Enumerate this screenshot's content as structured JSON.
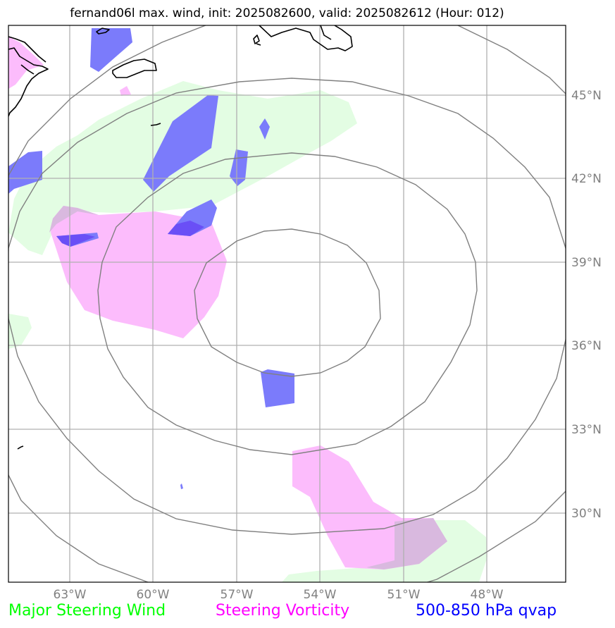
{
  "title": "fernand06l max. wind, init: 2025082600, valid: 2025082612 (Hour: 012)",
  "lon_ticks": [
    "63°W",
    "60°W",
    "57°W",
    "54°W",
    "51°W",
    "48°W"
  ],
  "lat_ticks": [
    "45°N",
    "42°N",
    "39°N",
    "36°N",
    "33°N",
    "30°N"
  ],
  "legend": {
    "wind": "Major Steering Wind",
    "vorticity": "Steering Vorticity",
    "qvap": "500-850 hPa qvap"
  },
  "colors": {
    "wind": "#00ff00",
    "vorticity": "#ff00ff",
    "qvap": "#0000ff",
    "wind_fill": "#e3fde3",
    "vorticity_fill": "#fcbcfc",
    "qvap_fill": "#7b7bfb",
    "grid": "#b0b0b0",
    "range_rings": "#808080",
    "coast": "#000000"
  }
}
